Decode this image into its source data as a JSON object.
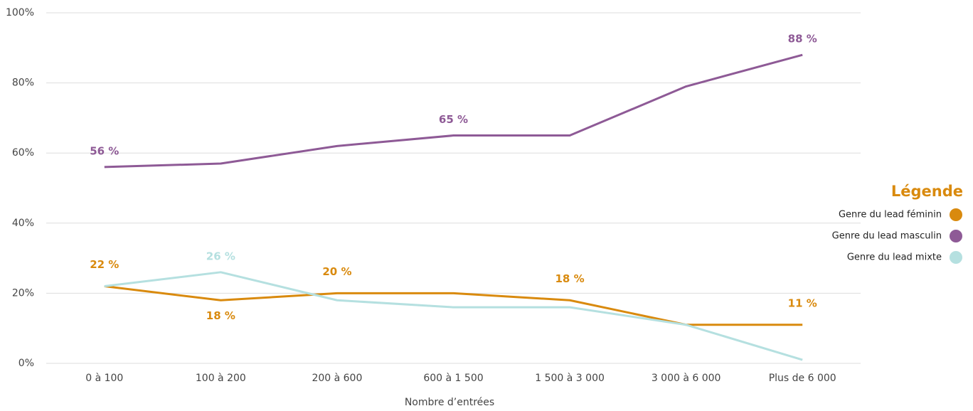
{
  "chart_data": {
    "type": "line",
    "categories": [
      "0 à 100",
      "100 à 200",
      "200 à 600",
      "600 à 1 500",
      "1 500 à 3 000",
      "3 000 à 6 000",
      "Plus de 6 000"
    ],
    "series": [
      {
        "name": "Genre du lead féminin",
        "color": "#d98a0e",
        "values": [
          22,
          18,
          20,
          20,
          18,
          11,
          11
        ],
        "value_labels": [
          "22 %",
          "18 %",
          "20 %",
          null,
          "18 %",
          null,
          "11 %"
        ]
      },
      {
        "name": "Genre du lead masculin",
        "color": "#8e5a96",
        "values": [
          56,
          57,
          62,
          65,
          65,
          79,
          88
        ],
        "value_labels": [
          "56 %",
          null,
          null,
          "65 %",
          null,
          null,
          "88 %"
        ]
      },
      {
        "name": "Genre du lead mixte",
        "color": "#b5e0e0",
        "values": [
          22,
          26,
          18,
          16,
          16,
          11,
          1
        ],
        "value_labels": [
          null,
          "26 %",
          null,
          null,
          null,
          null,
          null
        ]
      }
    ],
    "x_label": "Nombre d’entrées",
    "legend_title": "Légende",
    "legend_position": "right",
    "ylim": [
      0,
      100
    ],
    "yticks": [
      {
        "value": 0,
        "label": "0%"
      },
      {
        "value": 20,
        "label": "20%"
      },
      {
        "value": 40,
        "label": "40%"
      },
      {
        "value": 60,
        "label": "60%"
      },
      {
        "value": 80,
        "label": "80%"
      },
      {
        "value": 100,
        "label": "100%"
      }
    ],
    "grid": true
  }
}
